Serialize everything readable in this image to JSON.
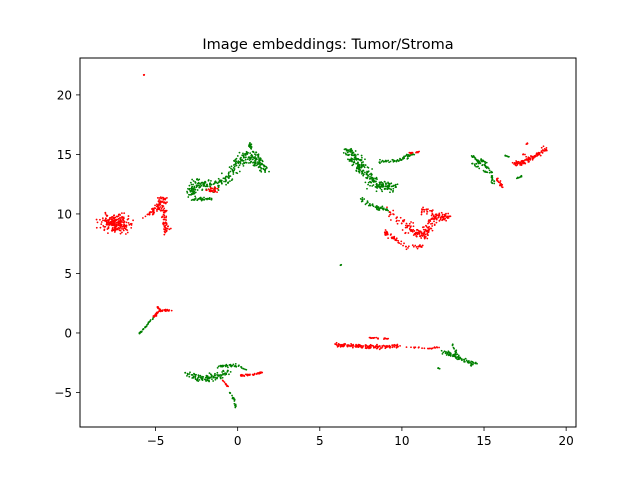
{
  "chart_data": {
    "type": "scatter",
    "title": "Image embeddings: Tumor/Stroma",
    "xlim": [
      -9.6,
      20.6
    ],
    "ylim": [
      -7.9,
      23.1
    ],
    "x_ticks": [
      -5,
      0,
      5,
      10,
      15,
      20
    ],
    "y_ticks": [
      -5,
      0,
      5,
      10,
      15,
      20
    ],
    "x_tick_labels": [
      "−5",
      "0",
      "5",
      "10",
      "15",
      "20"
    ],
    "y_tick_labels": [
      "−5",
      "0",
      "5",
      "10",
      "15",
      "20"
    ],
    "grid": false,
    "legend": "none",
    "colors": {
      "red": "#ff0000",
      "green": "#008000"
    },
    "clusters": [
      {
        "color": "red",
        "shape": "blob",
        "cx": -7.4,
        "cy": 9.2,
        "rx": 0.9,
        "ry": 0.7,
        "n": 220
      },
      {
        "color": "red",
        "shape": "path",
        "pts": [
          [
            -5.6,
            9.7
          ],
          [
            -5.0,
            10.4
          ],
          [
            -4.6,
            11.3
          ],
          [
            -4.5,
            9.9
          ],
          [
            -4.3,
            8.4
          ]
        ],
        "spread": 0.25,
        "n": 140
      },
      {
        "color": "red",
        "shape": "blob",
        "cx": -5.7,
        "cy": 21.7,
        "rx": 0.05,
        "ry": 0.05,
        "n": 3
      },
      {
        "color": "green",
        "shape": "path",
        "pts": [
          [
            -2.8,
            11.7
          ],
          [
            -2.5,
            12.6
          ],
          [
            -1.5,
            12.3
          ],
          [
            -0.6,
            13.0
          ],
          [
            0.0,
            14.3
          ],
          [
            0.6,
            15.1
          ],
          [
            1.0,
            14.4
          ],
          [
            1.8,
            13.7
          ]
        ],
        "spread": 0.38,
        "n": 320
      },
      {
        "color": "green",
        "shape": "path",
        "pts": [
          [
            -2.8,
            11.2
          ],
          [
            -1.6,
            11.3
          ]
        ],
        "spread": 0.12,
        "n": 35
      },
      {
        "color": "green",
        "shape": "path",
        "pts": [
          [
            0.6,
            16.0
          ],
          [
            1.2,
            15.0
          ],
          [
            1.6,
            14.0
          ]
        ],
        "spread": 0.12,
        "n": 40
      },
      {
        "color": "red",
        "shape": "blob",
        "cx": -1.5,
        "cy": 12.0,
        "rx": 0.35,
        "ry": 0.25,
        "n": 30
      },
      {
        "color": "green",
        "shape": "path",
        "pts": [
          [
            6.7,
            15.4
          ],
          [
            7.3,
            14.4
          ],
          [
            7.8,
            13.3
          ],
          [
            8.5,
            12.3
          ],
          [
            9.5,
            12.4
          ]
        ],
        "spread": 0.45,
        "n": 260
      },
      {
        "color": "green",
        "shape": "path",
        "pts": [
          [
            8.6,
            14.4
          ],
          [
            9.8,
            14.5
          ],
          [
            10.8,
            15.1
          ]
        ],
        "spread": 0.12,
        "n": 60
      },
      {
        "color": "green",
        "shape": "path",
        "pts": [
          [
            7.5,
            11.3
          ],
          [
            8.5,
            10.5
          ],
          [
            9.2,
            10.3
          ]
        ],
        "spread": 0.18,
        "n": 50
      },
      {
        "color": "red",
        "shape": "path",
        "pts": [
          [
            9.2,
            10.2
          ],
          [
            10.1,
            9.2
          ],
          [
            10.9,
            8.4
          ],
          [
            11.4,
            8.2
          ],
          [
            11.8,
            9.7
          ],
          [
            12.8,
            9.8
          ],
          [
            11.2,
            10.3
          ]
        ],
        "spread": 0.35,
        "n": 230
      },
      {
        "color": "red",
        "shape": "path",
        "pts": [
          [
            8.9,
            8.6
          ],
          [
            9.6,
            7.8
          ],
          [
            10.3,
            7.2
          ],
          [
            11.2,
            7.3
          ]
        ],
        "spread": 0.18,
        "n": 60
      },
      {
        "color": "red",
        "shape": "path",
        "pts": [
          [
            10.4,
            15.1
          ],
          [
            11.0,
            15.2
          ]
        ],
        "spread": 0.08,
        "n": 15
      },
      {
        "color": "green",
        "shape": "path",
        "pts": [
          [
            14.4,
            14.0
          ],
          [
            14.8,
            14.6
          ],
          [
            15.2,
            14.2
          ],
          [
            15.5,
            13.1
          ],
          [
            15.6,
            12.5
          ]
        ],
        "spread": 0.12,
        "n": 50
      },
      {
        "color": "green",
        "shape": "path",
        "pts": [
          [
            14.3,
            14.9
          ],
          [
            14.7,
            14.3
          ],
          [
            15.3,
            13.8
          ]
        ],
        "spread": 0.1,
        "n": 30
      },
      {
        "color": "green",
        "shape": "path",
        "pts": [
          [
            14.2,
            14.3
          ],
          [
            15.0,
            13.6
          ],
          [
            15.3,
            13.4
          ]
        ],
        "spread": 0.06,
        "n": 12
      },
      {
        "color": "green",
        "shape": "path",
        "pts": [
          [
            16.3,
            14.9
          ],
          [
            16.5,
            14.8
          ]
        ],
        "spread": 0.04,
        "n": 8
      },
      {
        "color": "green",
        "shape": "path",
        "pts": [
          [
            17.0,
            13.0
          ],
          [
            17.3,
            13.2
          ]
        ],
        "spread": 0.05,
        "n": 8
      },
      {
        "color": "red",
        "shape": "path",
        "pts": [
          [
            15.8,
            13.1
          ],
          [
            16.1,
            12.2
          ]
        ],
        "spread": 0.1,
        "n": 18
      },
      {
        "color": "red",
        "shape": "path",
        "pts": [
          [
            16.8,
            14.2
          ],
          [
            17.5,
            14.4
          ],
          [
            18.2,
            15.0
          ],
          [
            18.8,
            15.5
          ]
        ],
        "spread": 0.2,
        "n": 110
      },
      {
        "color": "red",
        "shape": "blob",
        "cx": 17.6,
        "cy": 15.9,
        "rx": 0.08,
        "ry": 0.08,
        "n": 4
      },
      {
        "color": "red",
        "shape": "path",
        "pts": [
          [
            17.4,
            15.0
          ],
          [
            17.8,
            14.6
          ]
        ],
        "spread": 0.08,
        "n": 12
      },
      {
        "color": "green",
        "shape": "path",
        "pts": [
          [
            -6.0,
            -0.1
          ],
          [
            -5.5,
            0.7
          ],
          [
            -5.1,
            1.4
          ]
        ],
        "spread": 0.05,
        "n": 30
      },
      {
        "color": "red",
        "shape": "path",
        "pts": [
          [
            -5.1,
            1.4
          ],
          [
            -4.7,
            1.9
          ],
          [
            -4.0,
            1.9
          ]
        ],
        "spread": 0.08,
        "n": 40
      },
      {
        "color": "red",
        "shape": "path",
        "pts": [
          [
            -4.9,
            2.2
          ],
          [
            -4.6,
            1.8
          ]
        ],
        "spread": 0.05,
        "n": 10
      },
      {
        "color": "green",
        "shape": "path",
        "pts": [
          [
            -3.0,
            -3.5
          ],
          [
            -2.1,
            -3.9
          ],
          [
            -1.3,
            -3.7
          ],
          [
            -0.6,
            -3.3
          ]
        ],
        "spread": 0.28,
        "n": 110
      },
      {
        "color": "green",
        "shape": "path",
        "pts": [
          [
            -1.2,
            -2.8
          ],
          [
            -0.2,
            -2.7
          ],
          [
            0.5,
            -3.1
          ]
        ],
        "spread": 0.12,
        "n": 40
      },
      {
        "color": "red",
        "shape": "path",
        "pts": [
          [
            0.2,
            -3.6
          ],
          [
            0.9,
            -3.5
          ],
          [
            1.5,
            -3.3
          ]
        ],
        "spread": 0.1,
        "n": 40
      },
      {
        "color": "red",
        "shape": "path",
        "pts": [
          [
            -0.9,
            -4.0
          ],
          [
            -0.6,
            -4.5
          ]
        ],
        "spread": 0.05,
        "n": 10
      },
      {
        "color": "green",
        "shape": "path",
        "pts": [
          [
            -0.6,
            -4.8
          ],
          [
            -0.2,
            -5.6
          ],
          [
            -0.1,
            -6.3
          ]
        ],
        "spread": 0.05,
        "n": 22
      },
      {
        "color": "red",
        "shape": "path",
        "pts": [
          [
            6.0,
            -1.0
          ],
          [
            7.4,
            -1.1
          ],
          [
            8.6,
            -1.2
          ],
          [
            9.8,
            -1.1
          ]
        ],
        "spread": 0.16,
        "n": 160
      },
      {
        "color": "red",
        "shape": "path",
        "pts": [
          [
            8.0,
            -0.4
          ],
          [
            9.2,
            -0.5
          ]
        ],
        "spread": 0.06,
        "n": 20
      },
      {
        "color": "red",
        "shape": "path",
        "pts": [
          [
            9.8,
            -1.1
          ],
          [
            11.6,
            -1.3
          ],
          [
            12.3,
            -1.2
          ]
        ],
        "spread": 0.05,
        "n": 22
      },
      {
        "color": "green",
        "shape": "path",
        "pts": [
          [
            12.5,
            -1.6
          ],
          [
            13.2,
            -1.9
          ],
          [
            13.8,
            -2.3
          ],
          [
            14.4,
            -2.6
          ]
        ],
        "spread": 0.18,
        "n": 90
      },
      {
        "color": "green",
        "shape": "path",
        "pts": [
          [
            13.1,
            -1.0
          ],
          [
            13.3,
            -1.7
          ]
        ],
        "spread": 0.06,
        "n": 12
      },
      {
        "color": "green",
        "shape": "path",
        "pts": [
          [
            12.1,
            -2.9
          ],
          [
            12.3,
            -3.0
          ]
        ],
        "spread": 0.03,
        "n": 5
      },
      {
        "color": "green",
        "shape": "blob",
        "cx": 6.3,
        "cy": 5.7,
        "rx": 0.04,
        "ry": 0.04,
        "n": 3
      }
    ]
  }
}
